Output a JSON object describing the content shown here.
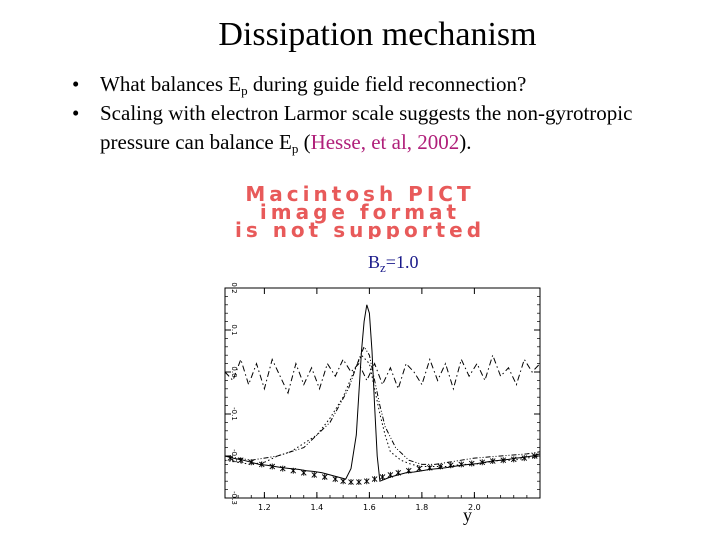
{
  "slide": {
    "title": "Dissipation mechanism",
    "bullet_symbol": "•",
    "bullets": [
      {
        "pre": "What balances E",
        "sub": "p",
        "post": " during guide field reconnection?"
      },
      {
        "pre": "Scaling with electron Larmor scale  suggests the non-gyrotropic pressure can balance E",
        "sub": "p",
        "mid": " (",
        "cite": "Hesse, et al, 2002",
        "post": ")."
      }
    ],
    "placeholder": {
      "line1": "Macintosh PICT",
      "line2": "image format",
      "line3": "is not supported",
      "color": "#e85a5a"
    },
    "figure_label": {
      "pre": "B",
      "sub": "z",
      "post": "=1.0"
    },
    "xaxis_label": "y"
  },
  "chart_data": {
    "type": "line",
    "title": "Bz=1.0",
    "xlabel": "y",
    "ylabel": "",
    "xlim": [
      1.05,
      2.25
    ],
    "ylim": [
      -0.3,
      0.2
    ],
    "xticks": [
      1.2,
      1.4,
      1.6,
      1.8,
      2.0
    ],
    "xtick_labels": [
      "1.2",
      "1.4",
      "1.6",
      "1.8",
      "2.0"
    ],
    "yticks": [
      -0.3,
      -0.2,
      -0.1,
      0.0,
      0.1,
      0.2
    ],
    "ytick_labels": [
      "-0.3",
      "-0.2",
      "-0.1",
      "0.0",
      "0.1",
      "0.2"
    ],
    "series": [
      {
        "name": "solid",
        "style": "solid",
        "x": [
          1.05,
          1.08,
          1.12,
          1.15,
          1.18,
          1.21,
          1.24,
          1.27,
          1.3,
          1.33,
          1.36,
          1.39,
          1.42,
          1.45,
          1.48,
          1.51,
          1.53,
          1.55,
          1.56,
          1.57,
          1.58,
          1.59,
          1.6,
          1.61,
          1.62,
          1.63,
          1.64,
          1.66,
          1.68,
          1.71,
          1.74,
          1.77,
          1.8,
          1.83,
          1.86,
          1.89,
          1.92,
          1.95,
          1.98,
          2.01,
          2.04,
          2.07,
          2.1,
          2.13,
          2.16,
          2.19,
          2.22,
          2.25
        ],
        "y": [
          -0.2,
          -0.205,
          -0.21,
          -0.215,
          -0.22,
          -0.222,
          -0.225,
          -0.228,
          -0.23,
          -0.232,
          -0.235,
          -0.237,
          -0.24,
          -0.245,
          -0.25,
          -0.255,
          -0.23,
          -0.15,
          -0.05,
          0.05,
          0.12,
          0.16,
          0.14,
          0.05,
          -0.08,
          -0.2,
          -0.26,
          -0.255,
          -0.25,
          -0.245,
          -0.24,
          -0.238,
          -0.235,
          -0.232,
          -0.23,
          -0.228,
          -0.225,
          -0.222,
          -0.22,
          -0.218,
          -0.215,
          -0.212,
          -0.21,
          -0.208,
          -0.205,
          -0.203,
          -0.2,
          -0.195
        ]
      },
      {
        "name": "dash-dot",
        "style": "dashdot",
        "x": [
          1.05,
          1.08,
          1.11,
          1.14,
          1.17,
          1.2,
          1.23,
          1.26,
          1.29,
          1.32,
          1.35,
          1.38,
          1.41,
          1.44,
          1.47,
          1.5,
          1.53,
          1.56,
          1.59,
          1.62,
          1.65,
          1.68,
          1.71,
          1.74,
          1.77,
          1.8,
          1.83,
          1.86,
          1.89,
          1.92,
          1.95,
          1.98,
          2.01,
          2.04,
          2.07,
          2.1,
          2.13,
          2.16,
          2.19,
          2.22,
          2.25
        ],
        "y": [
          0.0,
          -0.02,
          0.03,
          -0.03,
          0.02,
          -0.04,
          0.03,
          -0.01,
          -0.05,
          0.02,
          -0.03,
          0.01,
          -0.04,
          0.02,
          -0.01,
          0.03,
          0.0,
          0.02,
          -0.02,
          0.02,
          -0.03,
          0.01,
          -0.04,
          0.02,
          0.0,
          -0.03,
          0.03,
          -0.02,
          0.02,
          -0.04,
          0.03,
          -0.01,
          0.02,
          -0.02,
          0.04,
          -0.01,
          0.01,
          -0.03,
          0.03,
          0.0,
          0.02
        ]
      },
      {
        "name": "dotted",
        "style": "dotted",
        "x": [
          1.05,
          1.1,
          1.15,
          1.2,
          1.25,
          1.3,
          1.35,
          1.4,
          1.45,
          1.5,
          1.54,
          1.57,
          1.6,
          1.62,
          1.64,
          1.66,
          1.68,
          1.72,
          1.76,
          1.8,
          1.85,
          1.9,
          1.95,
          2.0,
          2.05,
          2.1,
          2.15,
          2.2,
          2.25
        ],
        "y": [
          -0.21,
          -0.215,
          -0.22,
          -0.215,
          -0.2,
          -0.19,
          -0.17,
          -0.15,
          -0.11,
          -0.06,
          0.0,
          0.04,
          0.02,
          -0.04,
          -0.1,
          -0.15,
          -0.19,
          -0.21,
          -0.22,
          -0.225,
          -0.225,
          -0.225,
          -0.22,
          -0.22,
          -0.215,
          -0.21,
          -0.21,
          -0.205,
          -0.2
        ]
      },
      {
        "name": "dash-dot-dot",
        "style": "dashdotdot",
        "x": [
          1.05,
          1.15,
          1.25,
          1.35,
          1.45,
          1.52,
          1.56,
          1.58,
          1.6,
          1.62,
          1.64,
          1.66,
          1.7,
          1.75,
          1.8,
          1.85,
          1.9,
          2.0,
          2.1,
          2.2,
          2.25
        ],
        "y": [
          -0.2,
          -0.21,
          -0.2,
          -0.18,
          -0.12,
          -0.04,
          0.03,
          0.06,
          0.04,
          -0.02,
          -0.08,
          -0.13,
          -0.18,
          -0.21,
          -0.22,
          -0.22,
          -0.215,
          -0.205,
          -0.2,
          -0.195,
          -0.19
        ]
      },
      {
        "name": "stars",
        "style": "markers",
        "x": [
          1.07,
          1.11,
          1.15,
          1.19,
          1.23,
          1.27,
          1.31,
          1.35,
          1.39,
          1.43,
          1.47,
          1.5,
          1.53,
          1.56,
          1.59,
          1.62,
          1.65,
          1.68,
          1.71,
          1.75,
          1.79,
          1.83,
          1.87,
          1.91,
          1.95,
          1.99,
          2.03,
          2.07,
          2.11,
          2.15,
          2.19,
          2.23
        ],
        "y": [
          -0.205,
          -0.21,
          -0.215,
          -0.22,
          -0.225,
          -0.23,
          -0.235,
          -0.24,
          -0.245,
          -0.25,
          -0.255,
          -0.26,
          -0.262,
          -0.262,
          -0.26,
          -0.255,
          -0.25,
          -0.245,
          -0.24,
          -0.235,
          -0.23,
          -0.228,
          -0.225,
          -0.222,
          -0.22,
          -0.218,
          -0.215,
          -0.212,
          -0.21,
          -0.208,
          -0.205,
          -0.2
        ]
      }
    ]
  }
}
